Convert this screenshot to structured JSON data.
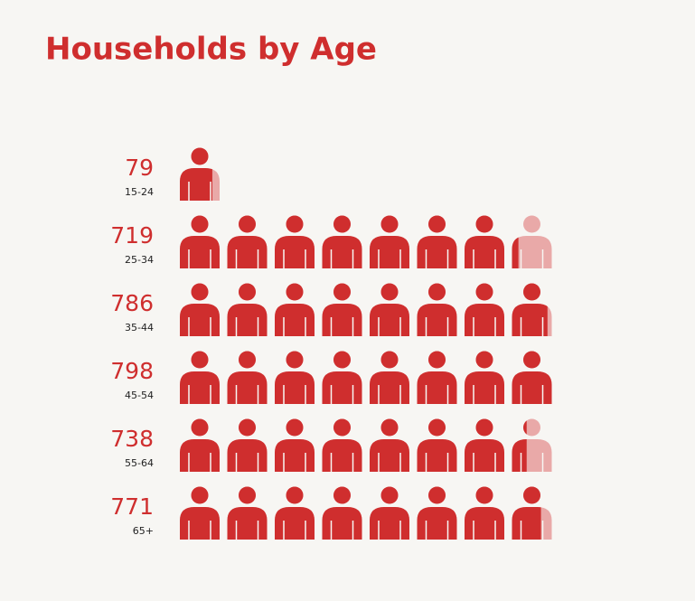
{
  "chart_data": {
    "type": "pictograph",
    "title": "Households by Age",
    "categories": [
      "15-24",
      "25-34",
      "35-44",
      "45-54",
      "55-64",
      "65+"
    ],
    "values": [
      79,
      719,
      786,
      798,
      738,
      771
    ],
    "color": "#cf2e2e",
    "empty_color": "#e9a9a8",
    "xlim": [
      0,
      800
    ]
  }
}
